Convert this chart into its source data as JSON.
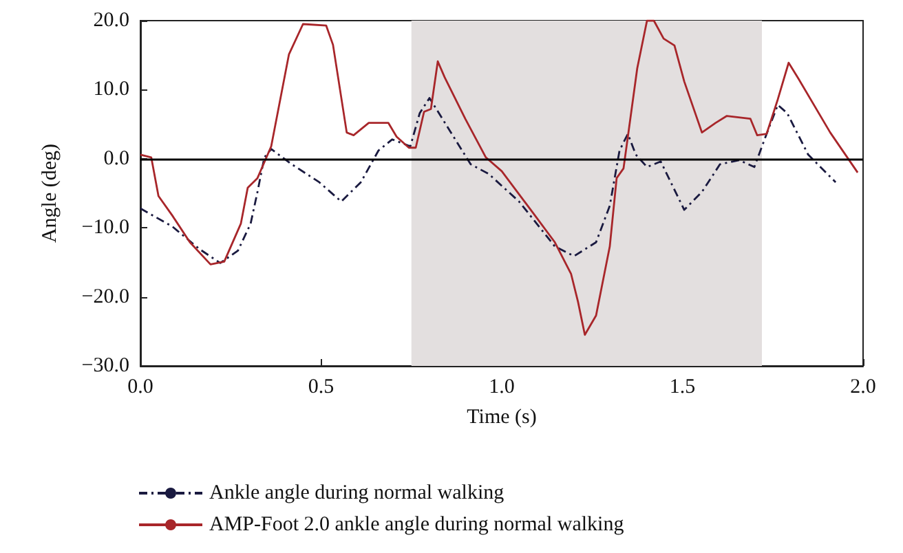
{
  "chart_data": {
    "type": "line",
    "xlabel": "Time (s)",
    "ylabel": "Angle (deg)",
    "xlim": [
      0,
      2
    ],
    "xticks": [
      {
        "value": 0,
        "label": "0.0"
      },
      {
        "value": 0.5,
        "label": "0.5"
      },
      {
        "value": 1,
        "label": "1.0"
      },
      {
        "value": 1.5,
        "label": "1.5"
      },
      {
        "value": 2,
        "label": "2.0"
      }
    ],
    "ylim": [
      -30,
      20
    ],
    "yticks": [
      {
        "value": -30,
        "label": "−30.0"
      },
      {
        "value": -20,
        "label": "−20.0"
      },
      {
        "value": -10,
        "label": "−10.0"
      },
      {
        "value": 0,
        "label": "0.0"
      },
      {
        "value": 10,
        "label": "10.0"
      },
      {
        "value": 20,
        "label": "20.0"
      }
    ],
    "grid": false,
    "legend": "bottom",
    "marker": "none",
    "ref_lines": [
      {
        "axis": "y",
        "value": 0,
        "color": "#000000",
        "line_style": "solid"
      }
    ],
    "bands": [
      {
        "axis": "x",
        "from": 0.75,
        "to": 1.72,
        "color": "#e3dfdf"
      }
    ],
    "series": [
      {
        "name": "Ankle angle during normal walking",
        "color": "#1a1a40",
        "line_style": "dashdot",
        "x": [
          0,
          0.088,
          0.164,
          0.221,
          0.27,
          0.305,
          0.324,
          0.343,
          0.362,
          0.419,
          0.495,
          0.556,
          0.61,
          0.659,
          0.697,
          0.747,
          0.773,
          0.8,
          0.838,
          0.914,
          0.964,
          1.048,
          1.147,
          1.2,
          1.261,
          1.299,
          1.326,
          1.349,
          1.371,
          1.402,
          1.44,
          1.505,
          1.554,
          1.604,
          1.657,
          1.699,
          1.733,
          1.764,
          1.79,
          1.848,
          1.924
        ],
        "values": [
          -7.2,
          -9.8,
          -13.1,
          -15.1,
          -13.3,
          -9.4,
          -4.8,
          0.2,
          1.4,
          -0.8,
          -3.4,
          -6.2,
          -3.4,
          1.2,
          2.8,
          1.8,
          6.6,
          8.8,
          5.6,
          -0.8,
          -2.2,
          -6.2,
          -12.7,
          -14.1,
          -12.1,
          -6.8,
          1.2,
          3.6,
          0.6,
          -1.2,
          -0.4,
          -7.4,
          -4.8,
          -0.8,
          -0.2,
          -1.2,
          3.6,
          7.8,
          6.6,
          0.6,
          -3.4
        ]
      },
      {
        "name": "AMP-Foot 2.0 ankle angle during normal walking",
        "color": "#a8262a",
        "line_style": "solid",
        "x": [
          0,
          0.03,
          0.05,
          0.088,
          0.137,
          0.194,
          0.232,
          0.278,
          0.297,
          0.324,
          0.362,
          0.411,
          0.45,
          0.514,
          0.533,
          0.571,
          0.59,
          0.632,
          0.686,
          0.709,
          0.743,
          0.762,
          0.785,
          0.804,
          0.823,
          0.842,
          0.899,
          0.956,
          1.0,
          1.086,
          1.147,
          1.192,
          1.211,
          1.23,
          1.261,
          1.299,
          1.318,
          1.337,
          1.375,
          1.402,
          1.421,
          1.448,
          1.478,
          1.505,
          1.554,
          1.592,
          1.623,
          1.688,
          1.707,
          1.733,
          1.764,
          1.794,
          1.821,
          1.909,
          1.985
        ],
        "values": [
          0.6,
          0.2,
          -5.4,
          -8.2,
          -12.1,
          -15.3,
          -14.9,
          -9.4,
          -4.2,
          -2.8,
          1.8,
          15.1,
          19.5,
          19.3,
          16.5,
          3.8,
          3.4,
          5.2,
          5.2,
          3.2,
          1.6,
          1.6,
          6.8,
          7.2,
          14.1,
          11.8,
          5.8,
          0.2,
          -1.8,
          -7.8,
          -12.1,
          -16.7,
          -20.7,
          -25.5,
          -22.7,
          -12.7,
          -2.8,
          -1.4,
          13.1,
          20,
          20,
          17.4,
          16.4,
          11.2,
          3.8,
          5.2,
          6.2,
          5.8,
          3.4,
          3.6,
          8.6,
          13.9,
          11.6,
          3.8,
          -2.0
        ]
      }
    ]
  }
}
